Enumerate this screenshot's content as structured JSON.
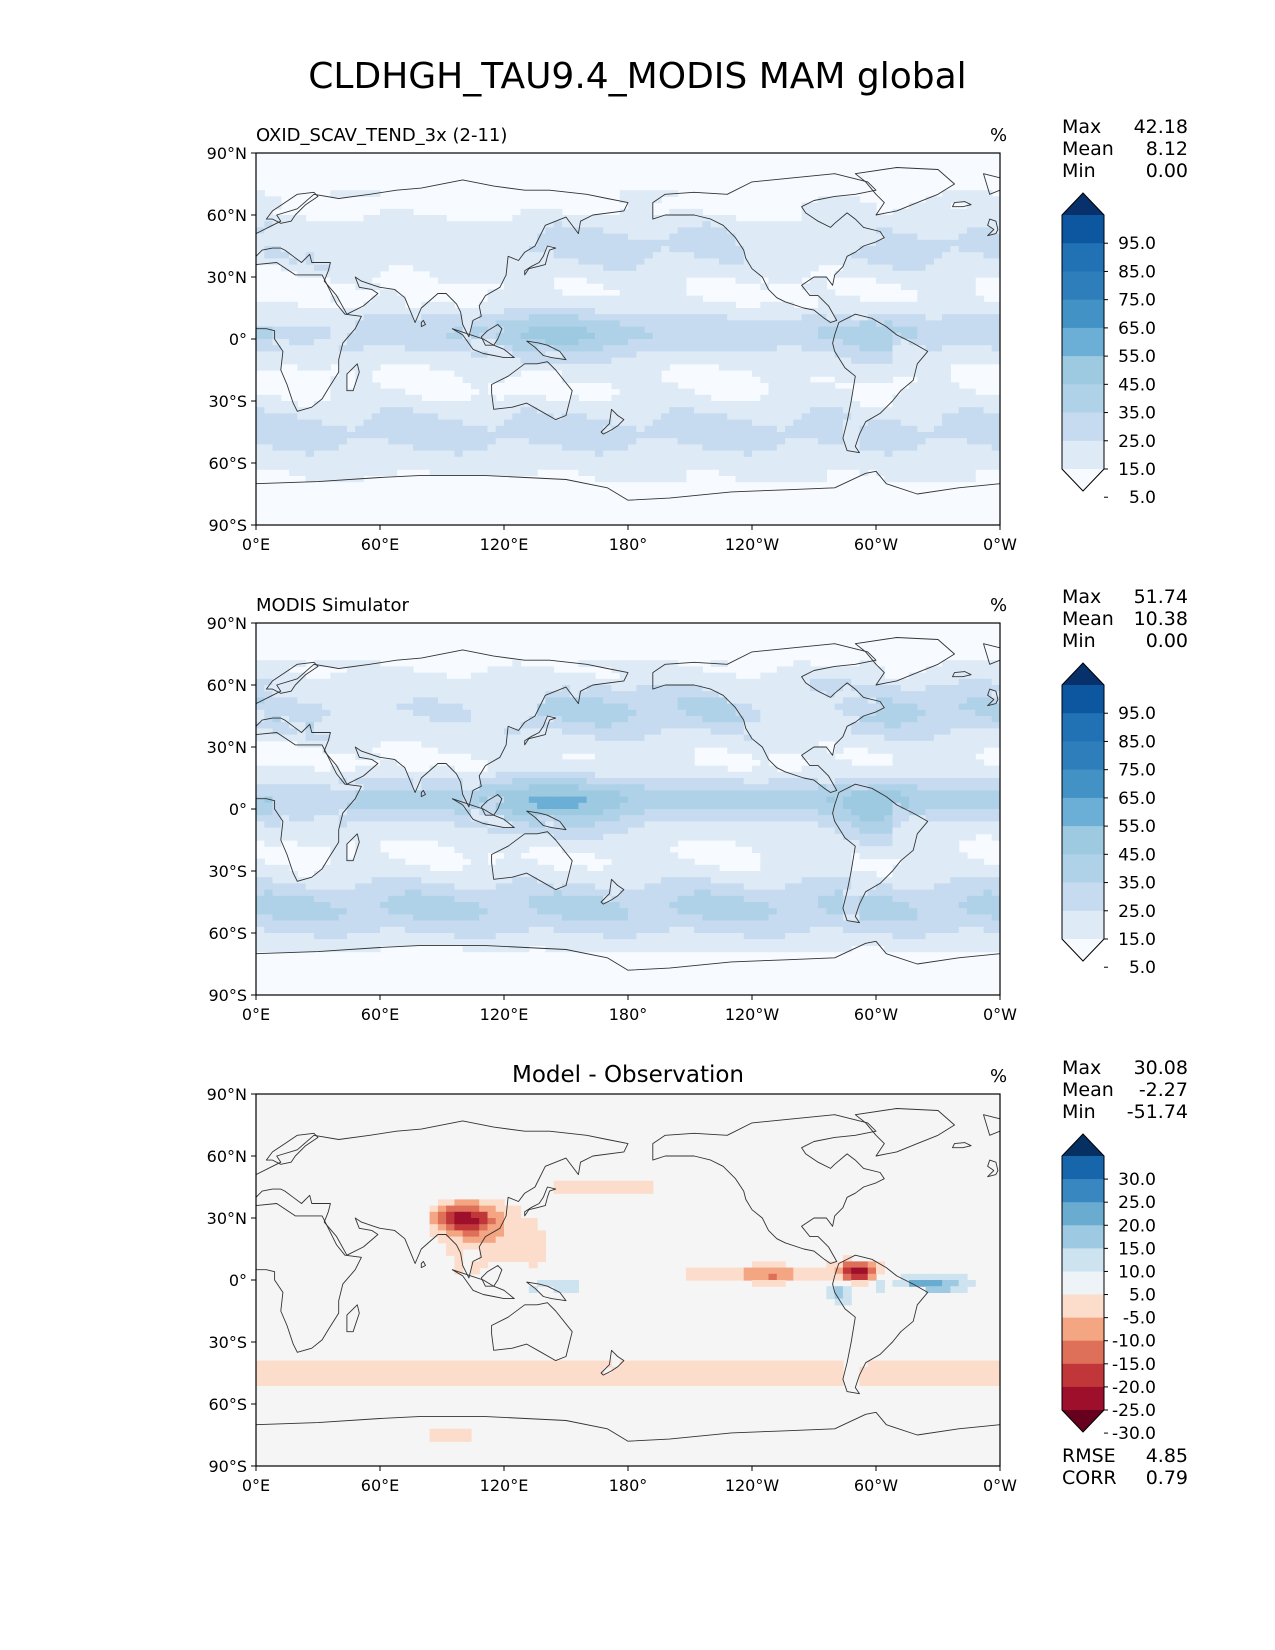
{
  "title": "CLDHGH_TAU9.4_MODIS MAM global",
  "lon_ticks": [
    "0°E",
    "60°E",
    "120°E",
    "180°",
    "120°W",
    "60°W",
    "0°W"
  ],
  "lat_ticks": [
    "90°N",
    "60°N",
    "30°N",
    "0°",
    "30°S",
    "60°S",
    "90°S"
  ],
  "colors": {
    "ocean_diff": "#f5f5f5",
    "coast": "#333333",
    "seq": [
      "#f7fbff",
      "#deebf7",
      "#c6dbef",
      "#b0d2e8",
      "#9ecae1",
      "#6baed6",
      "#4292c6",
      "#2f7ebc",
      "#2171b5",
      "#0d57a1",
      "#08306b"
    ],
    "div": [
      "#67001f",
      "#9d0f2a",
      "#c13639",
      "#de6f58",
      "#f4a582",
      "#fcdccb",
      "#eef3f7",
      "#cde3ef",
      "#9dc9e2",
      "#6aacd0",
      "#3987c0",
      "#1765ab",
      "#053061"
    ]
  },
  "chart_data": [
    {
      "type": "heatmap",
      "panel": "test",
      "title": "OXID_SCAV_TEND_3x (2-11)",
      "units": "%",
      "stats": {
        "max_label": "Max",
        "max": "42.18",
        "mean_label": "Mean",
        "mean": "8.12",
        "min_label": "Min",
        "min": "0.00"
      },
      "colorbar": {
        "levels": [
          "95.0",
          "85.0",
          "75.0",
          "65.0",
          "55.0",
          "45.0",
          "35.0",
          "25.0",
          "15.0",
          "5.0"
        ],
        "extend": "both",
        "palette": "seq"
      },
      "field": {
        "base": 5,
        "itcz": 18,
        "itcz_lat": 3,
        "stormtrack": 14,
        "st_lat": 45,
        "warmpool": 16,
        "amazon": 14,
        "africa": 8,
        "subtropic_low": 2
      }
    },
    {
      "type": "heatmap",
      "panel": "reference",
      "title": "MODIS Simulator",
      "units": "%",
      "stats": {
        "max_label": "Max",
        "max": "51.74",
        "mean_label": "Mean",
        "mean": "10.38",
        "min_label": "Min",
        "min": "0.00"
      },
      "colorbar": {
        "levels": [
          "95.0",
          "85.0",
          "75.0",
          "65.0",
          "55.0",
          "45.0",
          "35.0",
          "25.0",
          "15.0",
          "5.0"
        ],
        "extend": "both",
        "palette": "seq"
      },
      "field": {
        "base": 7,
        "itcz": 22,
        "itcz_lat": 5,
        "stormtrack": 20,
        "st_lat": 48,
        "warmpool": 20,
        "amazon": 24,
        "africa": 14,
        "subtropic_low": 3
      }
    },
    {
      "type": "heatmap",
      "panel": "difference",
      "title": "Model - Observation",
      "units": "%",
      "stats": {
        "max_label": "Max",
        "max": "30.08",
        "mean_label": "Mean",
        "mean": "-2.27",
        "min_label": "Min",
        "min": "-51.74"
      },
      "colorbar": {
        "levels": [
          "30.0",
          "25.0",
          "20.0",
          "15.0",
          "10.0",
          "5.0",
          "-5.0",
          "-10.0",
          "-15.0",
          "-20.0",
          "-25.0",
          "-30.0"
        ],
        "extend": "both",
        "palette": "div"
      },
      "footer": {
        "rmse_label": "RMSE",
        "rmse": "4.85",
        "corr_label": "CORR",
        "corr": "0.79"
      }
    }
  ]
}
